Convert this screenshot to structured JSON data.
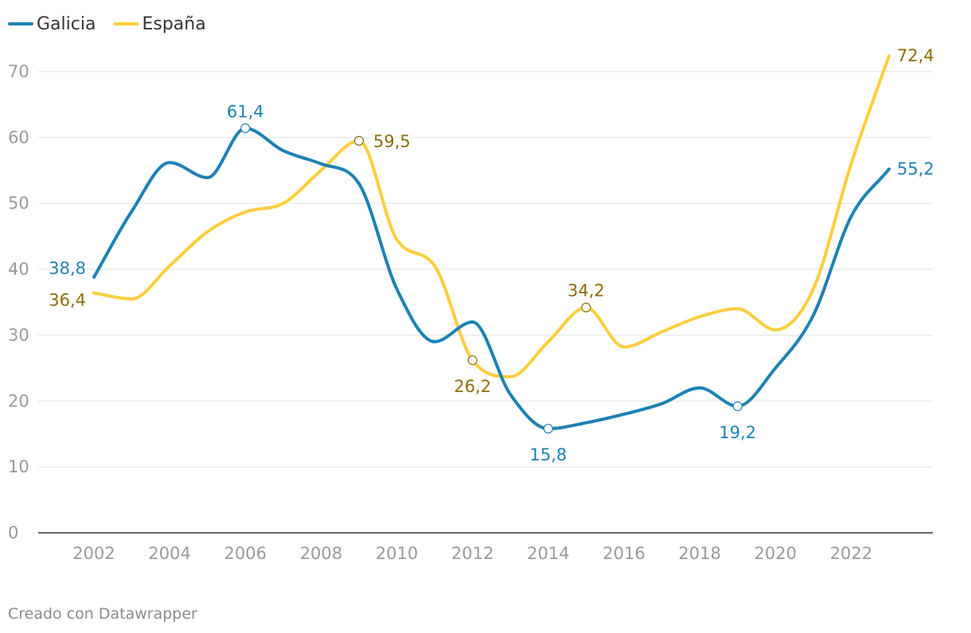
{
  "chart_data": {
    "type": "line",
    "title": "",
    "xlabel": "",
    "ylabel": "",
    "ylim": [
      0,
      70
    ],
    "xlim": [
      2001.3,
      2023.7
    ],
    "yticks": [
      0,
      10,
      20,
      30,
      40,
      50,
      60,
      70
    ],
    "xticks": [
      2002,
      2004,
      2006,
      2008,
      2010,
      2012,
      2014,
      2016,
      2018,
      2020,
      2022
    ],
    "grid": "horizontal",
    "legend_position": "top-left",
    "x": [
      2002,
      2003,
      2004,
      2005,
      2006,
      2007,
      2008,
      2009,
      2010,
      2011,
      2012,
      2013,
      2014,
      2015,
      2016,
      2017,
      2018,
      2019,
      2020,
      2021,
      2022,
      2023
    ],
    "series": [
      {
        "name": "Galicia",
        "color": "#1d81b3",
        "label_color": "#1d81b3",
        "values": [
          38.8,
          48.8,
          56.2,
          53.9,
          61.4,
          58.0,
          56.0,
          53.0,
          37.0,
          29.0,
          32.0,
          21.0,
          15.8,
          16.7,
          18.0,
          19.6,
          22.0,
          19.2,
          25.0,
          33.0,
          48.0,
          55.2
        ],
        "annotations": [
          {
            "x": 2002,
            "value": 38.8,
            "text": "38,8",
            "marker": false
          },
          {
            "x": 2006,
            "value": 61.4,
            "text": "61,4",
            "marker": true
          },
          {
            "x": 2014,
            "value": 15.8,
            "text": "15,8",
            "marker": true
          },
          {
            "x": 2019,
            "value": 19.2,
            "text": "19,2",
            "marker": true
          },
          {
            "x": 2023,
            "value": 55.2,
            "text": "55,2",
            "marker": false
          }
        ]
      },
      {
        "name": "España",
        "color": "#fcce3d",
        "label_color": "#8c6d08",
        "values": [
          36.4,
          35.5,
          40.5,
          45.7,
          48.7,
          50.0,
          55.0,
          59.5,
          44.5,
          40.5,
          26.2,
          23.7,
          29.0,
          34.2,
          28.2,
          30.5,
          32.8,
          34.0,
          30.8,
          37.0,
          56.0,
          72.4
        ],
        "annotations": [
          {
            "x": 2002,
            "value": 36.4,
            "text": "36,4",
            "marker": false
          },
          {
            "x": 2009,
            "value": 59.5,
            "text": "59,5",
            "marker": true
          },
          {
            "x": 2012,
            "value": 26.2,
            "text": "26,2",
            "marker": true
          },
          {
            "x": 2015,
            "value": 34.2,
            "text": "34,2",
            "marker": true
          },
          {
            "x": 2023,
            "value": 72.4,
            "text": "72,4",
            "marker": false
          }
        ]
      }
    ]
  },
  "footer": {
    "credit": "Creado con Datawrapper"
  }
}
